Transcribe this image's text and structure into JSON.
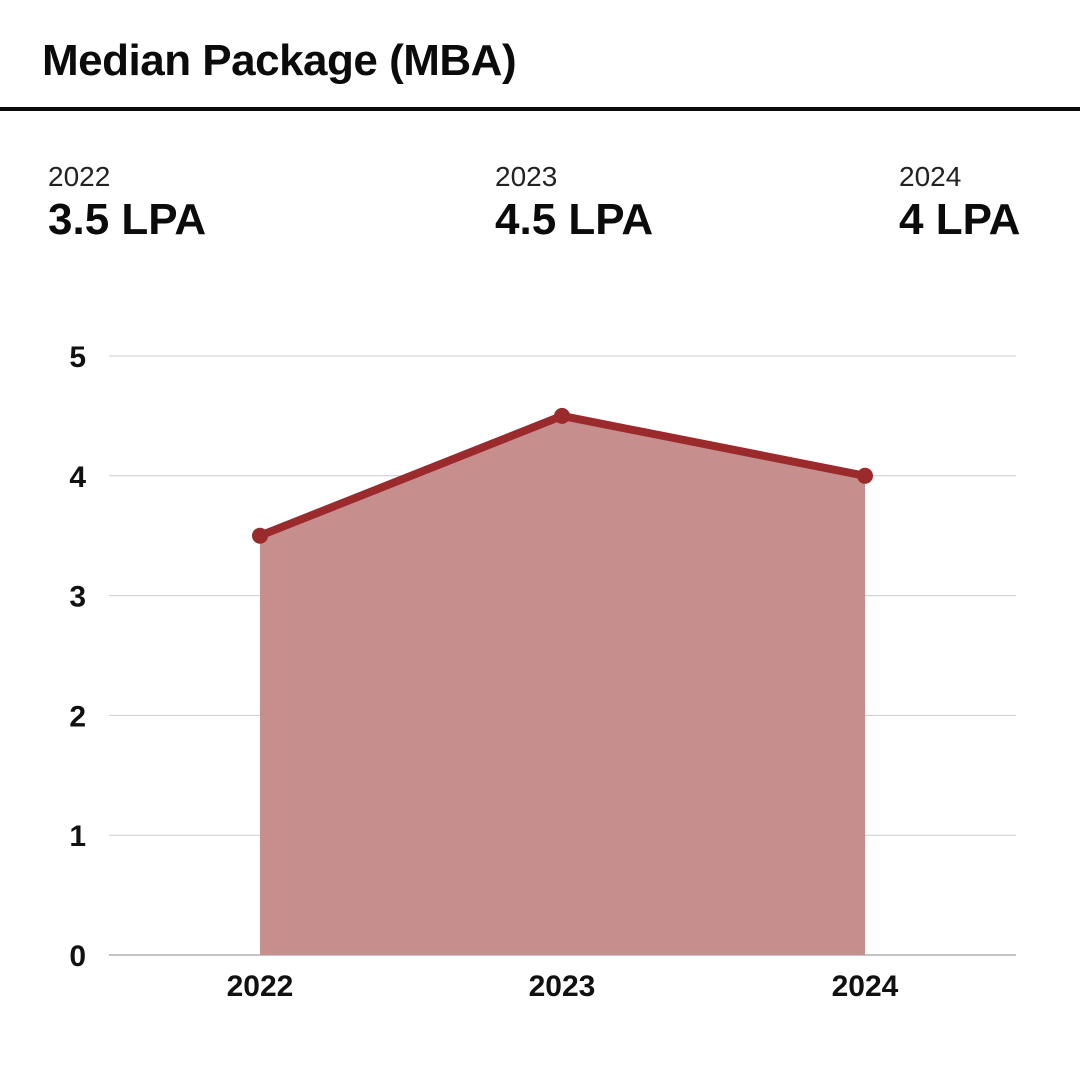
{
  "header": {
    "title": "Median Package (MBA)"
  },
  "stats": [
    {
      "year": "2022",
      "value": "3.5 LPA"
    },
    {
      "year": "2023",
      "value": "4.5 LPA"
    },
    {
      "year": "2024",
      "value": "4 LPA"
    }
  ],
  "colors": {
    "line": "#9b2a2c",
    "area": "#c78e8e",
    "grid": "#cccccc",
    "rule": "#0b0b0b"
  },
  "chart_data": {
    "type": "area",
    "categories": [
      "2022",
      "2023",
      "2024"
    ],
    "series": [
      {
        "values": [
          3.5,
          4.5,
          4
        ]
      }
    ],
    "yticks": [
      0,
      1,
      2,
      3,
      4,
      5
    ],
    "ylim": [
      0,
      5
    ],
    "grid": true,
    "legend": "none",
    "xlabel": "",
    "ylabel": ""
  }
}
